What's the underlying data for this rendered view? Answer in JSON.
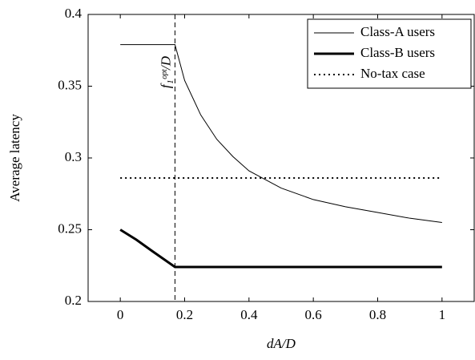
{
  "chart_data": {
    "type": "line",
    "xlabel": "dA/D",
    "ylabel": "Average latency",
    "xlim": [
      -0.1,
      1.1
    ],
    "ylim": [
      0.2,
      0.4
    ],
    "xticks": [
      0,
      0.2,
      0.4,
      0.6,
      0.8,
      1
    ],
    "yticks": [
      0.2,
      0.25,
      0.3,
      0.35,
      0.4
    ],
    "grid": false,
    "legend": "upper right",
    "series": [
      {
        "name": "Class-A users",
        "color": "#000000",
        "style": "thin",
        "x": [
          0,
          0.17,
          0.2,
          0.25,
          0.3,
          0.35,
          0.4,
          0.5,
          0.6,
          0.7,
          0.8,
          0.9,
          1
        ],
        "values": [
          0.379,
          0.379,
          0.354,
          0.33,
          0.313,
          0.301,
          0.291,
          0.279,
          0.271,
          0.266,
          0.262,
          0.258,
          0.255
        ]
      },
      {
        "name": "Class-B users",
        "color": "#000000",
        "style": "thick",
        "x": [
          0,
          0.05,
          0.1,
          0.17,
          1
        ],
        "values": [
          0.25,
          0.243,
          0.235,
          0.224,
          0.224
        ]
      },
      {
        "name": "No-tax case",
        "color": "#000000",
        "style": "dotted",
        "x": [
          0,
          1
        ],
        "values": [
          0.286,
          0.286
        ]
      }
    ],
    "annotation": {
      "x": 0.17,
      "label": "f₁ᵒᵖᵗ/D"
    }
  }
}
